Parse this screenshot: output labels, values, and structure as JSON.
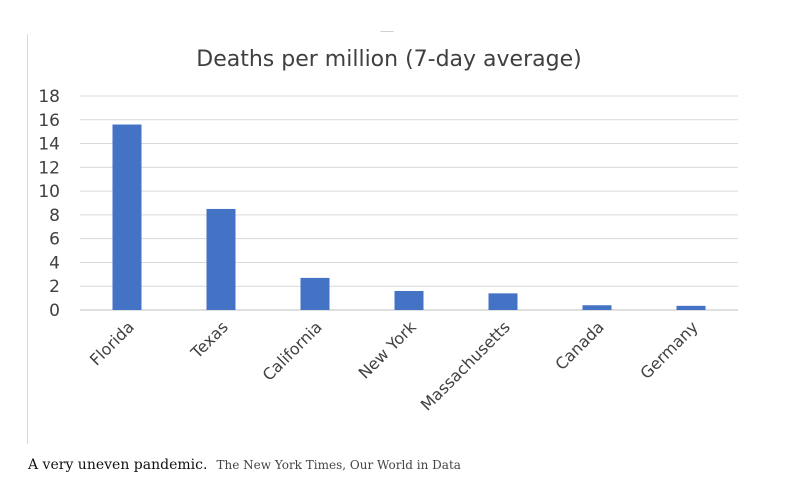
{
  "chart_data": {
    "type": "bar",
    "title": "Deaths per million (7-day average)",
    "xlabel": "",
    "ylabel": "",
    "categories": [
      "Florida",
      "Texas",
      "California",
      "New York",
      "Massachusetts",
      "Canada",
      "Germany"
    ],
    "values": [
      15.6,
      8.5,
      2.7,
      1.6,
      1.4,
      0.4,
      0.35
    ],
    "ylim": [
      0,
      18
    ],
    "yticks": [
      "18",
      "16",
      "14",
      "12",
      "10",
      "8",
      "6",
      "4",
      "2",
      "0"
    ],
    "grid": true,
    "legend": "none",
    "bar_color": "#4472c4"
  },
  "caption": {
    "text": "A very uneven pandemic.",
    "source": "The New York Times, Our World in Data"
  }
}
